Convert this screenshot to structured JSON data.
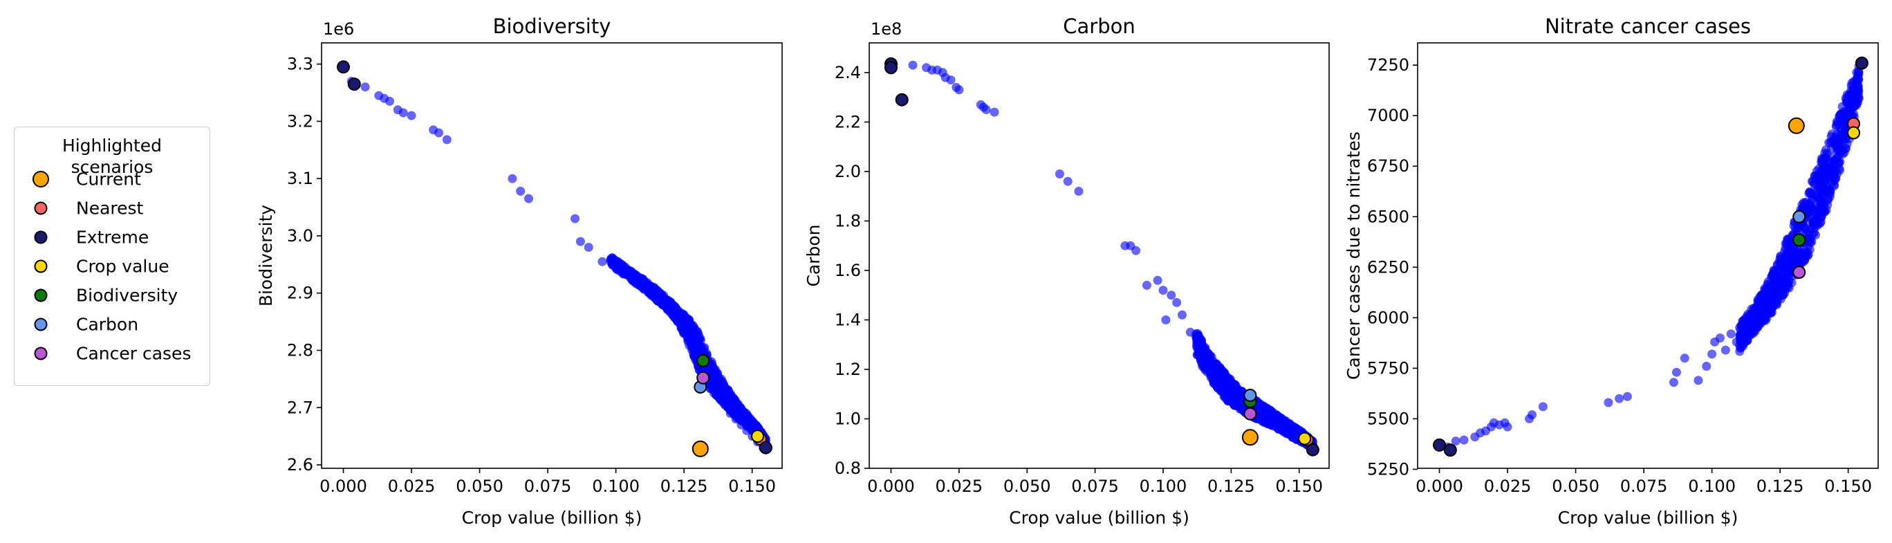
{
  "legend": {
    "title_line1": "Highlighted",
    "title_line2": "scenarios",
    "items": [
      {
        "label": "Current",
        "color": "#FFA500",
        "size": "large"
      },
      {
        "label": "Nearest",
        "color": "#F86464",
        "size": "small"
      },
      {
        "label": "Extreme",
        "color": "#191970",
        "size": "small"
      },
      {
        "label": "Crop value",
        "color": "#FFD700",
        "size": "small"
      },
      {
        "label": "Biodiversity",
        "color": "#0A7A0A",
        "size": "small"
      },
      {
        "label": "Carbon",
        "color": "#6495ED",
        "size": "small"
      },
      {
        "label": "Cancer cases",
        "color": "#BA55D3",
        "size": "small"
      }
    ]
  },
  "chart_data": [
    {
      "type": "scatter",
      "title": "Biodiversity",
      "xlabel": "Crop value (billion $)",
      "ylabel": "Biodiversity",
      "offset_text": "1e6",
      "xlim": [
        -0.008,
        0.161
      ],
      "ylim": [
        2.594,
        3.337
      ],
      "xticks": [
        0.0,
        0.025,
        0.05,
        0.075,
        0.1,
        0.125,
        0.15
      ],
      "xtick_labels": [
        "0.000",
        "0.025",
        "0.050",
        "0.075",
        "0.100",
        "0.125",
        "0.150"
      ],
      "yticks": [
        2.6,
        2.7,
        2.8,
        2.9,
        3.0,
        3.1,
        3.2,
        3.3
      ],
      "ytick_labels": [
        "2.6",
        "2.7",
        "2.8",
        "2.9",
        "3.0",
        "3.1",
        "3.2",
        "3.3"
      ],
      "grid": false,
      "cloud_color": "#0000FF",
      "cloud": {
        "x": [
          0.0,
          0.003,
          0.008,
          0.013,
          0.015,
          0.017,
          0.02,
          0.022,
          0.025,
          0.033,
          0.035,
          0.038,
          0.062,
          0.065,
          0.068,
          0.085,
          0.087,
          0.09,
          0.095,
          0.1,
          0.105,
          0.11,
          0.115,
          0.12,
          0.123,
          0.126,
          0.128,
          0.13,
          0.132,
          0.134,
          0.136,
          0.138,
          0.14,
          0.142,
          0.144,
          0.146,
          0.148,
          0.15,
          0.152,
          0.154
        ],
        "y": [
          3.295,
          3.27,
          3.26,
          3.245,
          3.24,
          3.235,
          3.22,
          3.215,
          3.21,
          3.185,
          3.18,
          3.168,
          3.1,
          3.078,
          3.065,
          3.03,
          2.99,
          2.98,
          2.955,
          2.955,
          2.935,
          2.915,
          2.9,
          2.875,
          2.855,
          2.83,
          2.805,
          2.78,
          2.765,
          2.745,
          2.73,
          2.72,
          2.705,
          2.69,
          2.68,
          2.67,
          2.66,
          2.65,
          2.64,
          2.63
        ]
      },
      "band": {
        "x": [
          0.098,
          0.105,
          0.112,
          0.118,
          0.122,
          0.126,
          0.13,
          0.134,
          0.138,
          0.142,
          0.146,
          0.15,
          0.153,
          0.155
        ],
        "y_low": [
          2.95,
          2.925,
          2.9,
          2.875,
          2.855,
          2.82,
          2.77,
          2.735,
          2.715,
          2.695,
          2.675,
          2.66,
          2.645,
          2.633
        ],
        "y_high": [
          2.965,
          2.94,
          2.918,
          2.895,
          2.875,
          2.86,
          2.835,
          2.79,
          2.755,
          2.725,
          2.7,
          2.678,
          2.66,
          2.645
        ]
      },
      "highlights": [
        {
          "name": "Current",
          "x": 0.131,
          "y": 2.628
        },
        {
          "name": "Nearest",
          "x": 0.153,
          "y": 2.645
        },
        {
          "name": "Crop value",
          "x": 0.152,
          "y": 2.65
        },
        {
          "name": "Extreme",
          "x": 0.0,
          "y": 3.295
        },
        {
          "name": "Extreme",
          "x": 0.004,
          "y": 3.265
        },
        {
          "name": "Extreme",
          "x": 0.155,
          "y": 2.63
        },
        {
          "name": "Biodiversity",
          "x": 0.132,
          "y": 2.782
        },
        {
          "name": "Carbon",
          "x": 0.131,
          "y": 2.736
        },
        {
          "name": "Cancer cases",
          "x": 0.132,
          "y": 2.752
        }
      ]
    },
    {
      "type": "scatter",
      "title": "Carbon",
      "xlabel": "Crop value (billion $)",
      "ylabel": "Carbon",
      "offset_text": "1e8",
      "xlim": [
        -0.008,
        0.161
      ],
      "ylim": [
        0.8,
        2.52
      ],
      "xticks": [
        0.0,
        0.025,
        0.05,
        0.075,
        0.1,
        0.125,
        0.15
      ],
      "xtick_labels": [
        "0.000",
        "0.025",
        "0.050",
        "0.075",
        "0.100",
        "0.125",
        "0.150"
      ],
      "yticks": [
        0.8,
        1.0,
        1.2,
        1.4,
        1.6,
        1.8,
        2.0,
        2.2,
        2.4
      ],
      "ytick_labels": [
        "0.8",
        "1.0",
        "1.2",
        "1.4",
        "1.6",
        "1.8",
        "2.0",
        "2.2",
        "2.4"
      ],
      "grid": false,
      "cloud_color": "#0000FF",
      "cloud": {
        "x": [
          0.0,
          0.008,
          0.013,
          0.015,
          0.017,
          0.019,
          0.02,
          0.022,
          0.024,
          0.025,
          0.033,
          0.034,
          0.035,
          0.038,
          0.062,
          0.065,
          0.069,
          0.086,
          0.088,
          0.09,
          0.094,
          0.098,
          0.1,
          0.101,
          0.103,
          0.105,
          0.107,
          0.11,
          0.113,
          0.116,
          0.119,
          0.122,
          0.125,
          0.128,
          0.131,
          0.134,
          0.137,
          0.14,
          0.143,
          0.146,
          0.149,
          0.152,
          0.155
        ],
        "y": [
          2.43,
          2.43,
          2.42,
          2.41,
          2.41,
          2.4,
          2.38,
          2.37,
          2.34,
          2.33,
          2.27,
          2.26,
          2.25,
          2.24,
          1.99,
          1.96,
          1.92,
          1.7,
          1.7,
          1.68,
          1.54,
          1.56,
          1.52,
          1.4,
          1.5,
          1.47,
          1.42,
          1.35,
          1.28,
          1.22,
          1.18,
          1.14,
          1.1,
          1.08,
          1.05,
          1.03,
          1.01,
          0.99,
          0.97,
          0.95,
          0.93,
          0.91,
          0.89
        ]
      },
      "band": {
        "x": [
          0.112,
          0.116,
          0.12,
          0.124,
          0.128,
          0.132,
          0.136,
          0.14,
          0.144,
          0.148,
          0.152,
          0.155
        ],
        "y_low": [
          1.26,
          1.18,
          1.12,
          1.07,
          1.04,
          1.01,
          0.99,
          0.97,
          0.95,
          0.92,
          0.9,
          0.88
        ],
        "y_high": [
          1.36,
          1.28,
          1.22,
          1.17,
          1.12,
          1.09,
          1.06,
          1.03,
          1.0,
          0.97,
          0.94,
          0.91
        ]
      },
      "highlights": [
        {
          "name": "Current",
          "x": 0.132,
          "y": 0.925
        },
        {
          "name": "Nearest",
          "x": 0.153,
          "y": 0.915
        },
        {
          "name": "Crop value",
          "x": 0.152,
          "y": 0.92
        },
        {
          "name": "Extreme",
          "x": 0.0,
          "y": 2.435
        },
        {
          "name": "Extreme",
          "x": 0.0,
          "y": 2.42
        },
        {
          "name": "Extreme",
          "x": 0.004,
          "y": 2.29
        },
        {
          "name": "Extreme",
          "x": 0.155,
          "y": 0.875
        },
        {
          "name": "Biodiversity",
          "x": 0.132,
          "y": 1.07
        },
        {
          "name": "Carbon",
          "x": 0.132,
          "y": 1.095
        },
        {
          "name": "Cancer cases",
          "x": 0.132,
          "y": 1.02
        }
      ]
    },
    {
      "type": "scatter",
      "title": "Nitrate cancer cases",
      "xlabel": "Crop value (billion $)",
      "ylabel": "Cancer cases due to nitrates",
      "offset_text": "",
      "xlim": [
        -0.008,
        0.161
      ],
      "ylim": [
        5255,
        7360
      ],
      "xticks": [
        0.0,
        0.025,
        0.05,
        0.075,
        0.1,
        0.125,
        0.15
      ],
      "xtick_labels": [
        "0.000",
        "0.025",
        "0.050",
        "0.075",
        "0.100",
        "0.125",
        "0.150"
      ],
      "yticks": [
        5250,
        5500,
        5750,
        6000,
        6250,
        6500,
        6750,
        7000,
        7250
      ],
      "ytick_labels": [
        "5250",
        "5500",
        "5750",
        "6000",
        "6250",
        "6500",
        "6750",
        "7000",
        "7250"
      ],
      "grid": false,
      "cloud_color": "#0000FF",
      "cloud": {
        "x": [
          0.0,
          0.003,
          0.006,
          0.009,
          0.013,
          0.015,
          0.017,
          0.019,
          0.02,
          0.022,
          0.024,
          0.025,
          0.033,
          0.034,
          0.038,
          0.062,
          0.066,
          0.069,
          0.086,
          0.087,
          0.09,
          0.095,
          0.098,
          0.1,
          0.101,
          0.103,
          0.105,
          0.107,
          0.109,
          0.111,
          0.113
        ],
        "y": [
          5370,
          5360,
          5390,
          5395,
          5410,
          5430,
          5440,
          5460,
          5480,
          5470,
          5480,
          5460,
          5500,
          5520,
          5560,
          5580,
          5600,
          5610,
          5680,
          5730,
          5800,
          5690,
          5760,
          5820,
          5880,
          5900,
          5840,
          5920,
          5880,
          5960,
          5920
        ]
      },
      "band": {
        "x": [
          0.11,
          0.115,
          0.12,
          0.125,
          0.13,
          0.135,
          0.14,
          0.145,
          0.15,
          0.154
        ],
        "y_low": [
          5830,
          5920,
          5990,
          6080,
          6180,
          6300,
          6460,
          6640,
          6860,
          7080
        ],
        "y_high": [
          5960,
          6060,
          6160,
          6300,
          6470,
          6620,
          6780,
          6950,
          7120,
          7250
        ]
      },
      "highlights": [
        {
          "name": "Current",
          "x": 0.131,
          "y": 6950
        },
        {
          "name": "Nearest",
          "x": 0.152,
          "y": 6960
        },
        {
          "name": "Crop value",
          "x": 0.152,
          "y": 6915
        },
        {
          "name": "Extreme",
          "x": 0.0,
          "y": 5370
        },
        {
          "name": "Extreme",
          "x": 0.004,
          "y": 5345
        },
        {
          "name": "Extreme",
          "x": 0.155,
          "y": 7260
        },
        {
          "name": "Biodiversity",
          "x": 0.132,
          "y": 6385
        },
        {
          "name": "Carbon",
          "x": 0.132,
          "y": 6500
        },
        {
          "name": "Cancer cases",
          "x": 0.132,
          "y": 6225
        }
      ]
    }
  ]
}
